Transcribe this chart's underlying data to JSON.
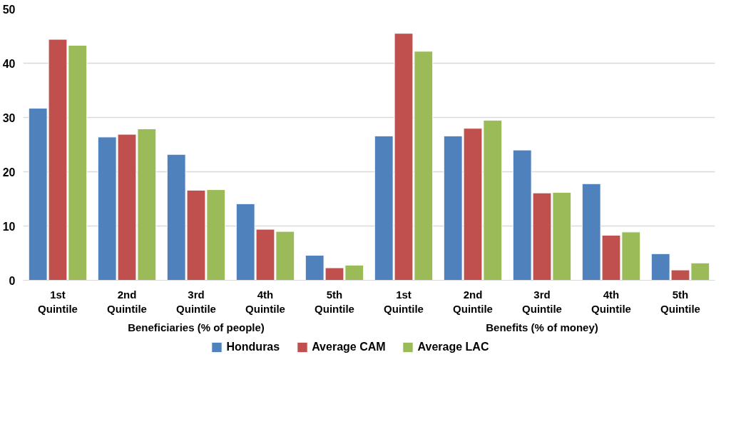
{
  "chart_data": {
    "type": "bar",
    "categories": [
      "1st\nQuintile",
      "2nd\nQuintile",
      "3rd\nQuintile",
      "4th\nQuintile",
      "5th\nQuintile",
      "1st\nQuintile",
      "2nd\nQuintile",
      "3rd\nQuintile",
      "4th\nQuintile",
      "5th\nQuintile"
    ],
    "annotations": [
      "Beneficiaries (% of people)",
      "Benefits (% of money)"
    ],
    "series": [
      {
        "name": "Honduras",
        "color": "#4f81bd",
        "values": [
          31.7,
          26.4,
          23.2,
          14.1,
          4.6,
          26.6,
          26.6,
          24.0,
          17.8,
          4.9
        ]
      },
      {
        "name": "Average CAM",
        "color": "#c0504d",
        "values": [
          44.4,
          26.9,
          16.6,
          9.4,
          2.3,
          45.5,
          28.0,
          16.1,
          8.3,
          1.9
        ]
      },
      {
        "name": "Average LAC",
        "color": "#9bbb59",
        "values": [
          43.3,
          27.9,
          16.7,
          9.0,
          2.8,
          42.2,
          29.5,
          16.2,
          8.9,
          3.2
        ]
      }
    ],
    "ylim": [
      0,
      50
    ],
    "yticks": [
      0,
      10,
      20,
      30,
      40,
      50
    ],
    "grid": "y",
    "legend": "bottom"
  }
}
